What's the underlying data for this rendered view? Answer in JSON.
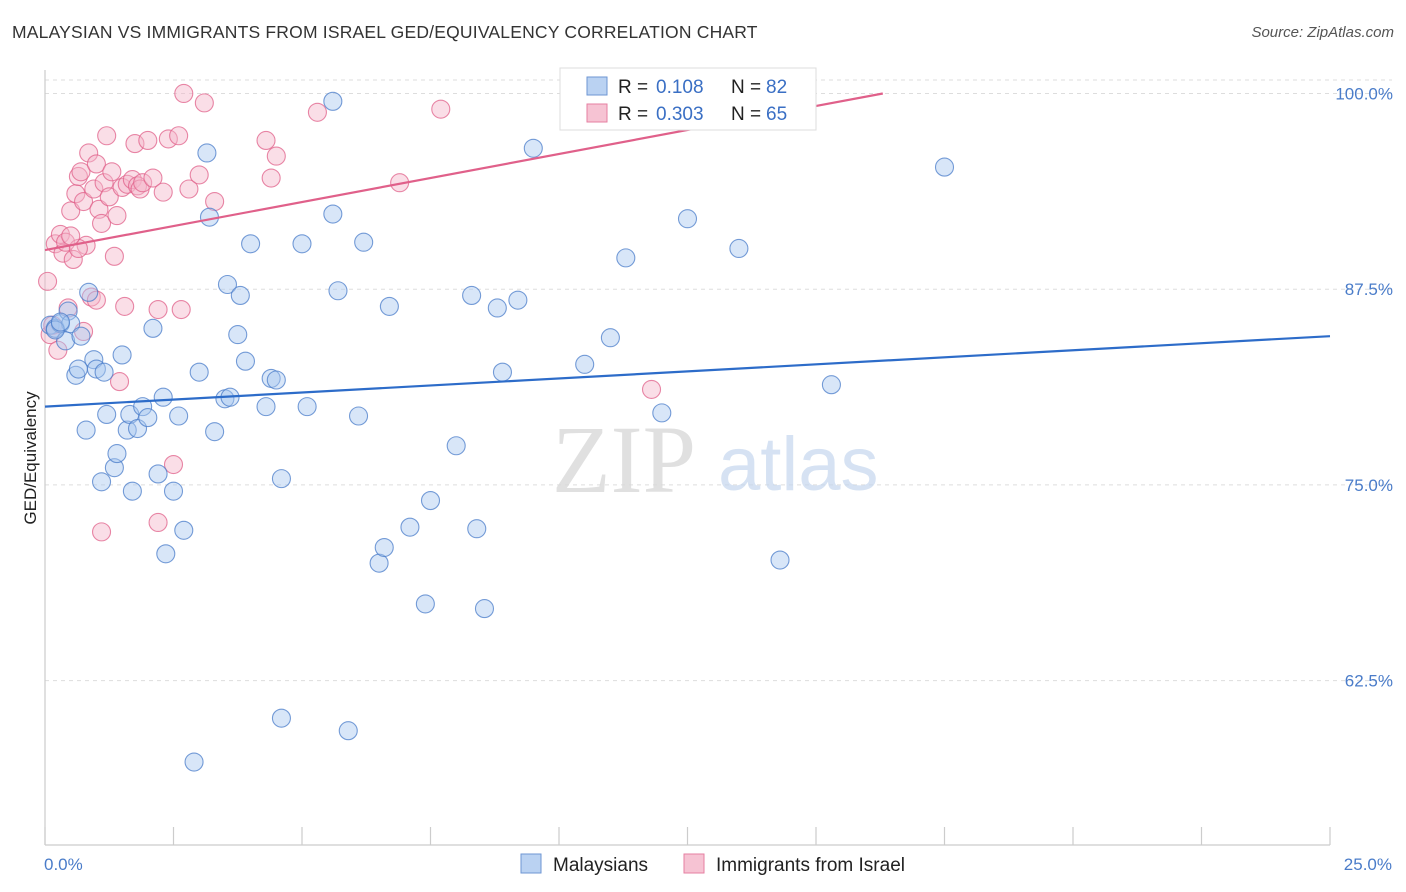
{
  "header": {
    "title": "MALAYSIAN VS IMMIGRANTS FROM ISRAEL GED/EQUIVALENCY CORRELATION CHART",
    "source": "Source: ZipAtlas.com"
  },
  "colors": {
    "blue": "#4a7cc9",
    "blue_fill": "#a9c8f0",
    "blue_line": "#2d6cc9",
    "pink": "#e0608a",
    "pink_fill": "#f5b5c9",
    "grid": "#dddddd"
  },
  "watermark": {
    "zip": "ZIP",
    "atlas": "atlas"
  },
  "chart_data": {
    "type": "scatter",
    "title": "MALAYSIAN VS IMMIGRANTS FROM ISRAEL GED/EQUIVALENCY CORRELATION CHART",
    "xlabel": "",
    "ylabel": "GED/Equivalency",
    "xlim": [
      0,
      25
    ],
    "ylim": [
      52,
      101.5
    ],
    "x_tick_labels": [
      "0.0%",
      "25.0%"
    ],
    "y_ticks": [
      62.5,
      75.0,
      87.5,
      100.0
    ],
    "y_tick_labels": [
      "62.5%",
      "75.0%",
      "87.5%",
      "100.0%"
    ],
    "grid": true,
    "legend": {
      "position": "top-center",
      "entries": [
        {
          "r_label": "R = ",
          "r_value": "0.108",
          "n_label": "N = ",
          "n_value": "82"
        },
        {
          "r_label": "R = ",
          "r_value": "0.303",
          "n_label": "N = ",
          "n_value": "65"
        }
      ]
    },
    "series": [
      {
        "name": "Malaysians",
        "trend": {
          "x": [
            0,
            25
          ],
          "y": [
            80.0,
            84.5
          ]
        },
        "points": [
          [
            0.1,
            85.2
          ],
          [
            0.2,
            85.0
          ],
          [
            0.3,
            85.3
          ],
          [
            0.4,
            84.2
          ],
          [
            0.45,
            86.1
          ],
          [
            0.5,
            85.3
          ],
          [
            0.6,
            82.0
          ],
          [
            0.65,
            82.4
          ],
          [
            0.7,
            84.5
          ],
          [
            0.8,
            78.5
          ],
          [
            0.85,
            87.3
          ],
          [
            0.95,
            83.0
          ],
          [
            1.0,
            82.4
          ],
          [
            1.1,
            75.2
          ],
          [
            1.15,
            82.2
          ],
          [
            1.2,
            79.5
          ],
          [
            1.35,
            76.1
          ],
          [
            1.4,
            77.0
          ],
          [
            1.5,
            83.3
          ],
          [
            1.6,
            78.5
          ],
          [
            1.65,
            79.5
          ],
          [
            1.7,
            74.6
          ],
          [
            1.8,
            78.6
          ],
          [
            1.9,
            80.0
          ],
          [
            2.0,
            79.3
          ],
          [
            2.1,
            85.0
          ],
          [
            2.2,
            75.7
          ],
          [
            2.3,
            80.6
          ],
          [
            2.35,
            70.6
          ],
          [
            2.5,
            74.6
          ],
          [
            2.6,
            79.4
          ],
          [
            2.7,
            72.1
          ],
          [
            2.9,
            57.3
          ],
          [
            3.0,
            82.2
          ],
          [
            3.15,
            96.2
          ],
          [
            3.2,
            92.1
          ],
          [
            3.3,
            78.4
          ],
          [
            3.5,
            80.5
          ],
          [
            3.55,
            87.8
          ],
          [
            3.6,
            80.6
          ],
          [
            3.75,
            84.6
          ],
          [
            3.8,
            87.1
          ],
          [
            3.9,
            82.9
          ],
          [
            4.0,
            90.4
          ],
          [
            4.3,
            80.0
          ],
          [
            4.4,
            81.8
          ],
          [
            4.5,
            81.7
          ],
          [
            4.6,
            75.4
          ],
          [
            5.0,
            90.4
          ],
          [
            5.1,
            80.0
          ],
          [
            5.6,
            92.3
          ],
          [
            5.7,
            87.4
          ],
          [
            5.9,
            59.3
          ],
          [
            6.1,
            79.4
          ],
          [
            6.2,
            90.5
          ],
          [
            6.5,
            70.0
          ],
          [
            6.6,
            71.0
          ],
          [
            6.7,
            86.4
          ],
          [
            7.1,
            72.3
          ],
          [
            7.4,
            67.4
          ],
          [
            7.5,
            74.0
          ],
          [
            8.0,
            77.5
          ],
          [
            8.3,
            87.1
          ],
          [
            8.4,
            72.2
          ],
          [
            8.55,
            67.1
          ],
          [
            8.8,
            86.3
          ],
          [
            8.9,
            82.2
          ],
          [
            9.2,
            86.8
          ],
          [
            9.5,
            96.5
          ],
          [
            10.5,
            82.7
          ],
          [
            11.0,
            84.4
          ],
          [
            11.3,
            89.5
          ],
          [
            12.0,
            79.6
          ],
          [
            12.5,
            92.0
          ],
          [
            13.5,
            90.1
          ],
          [
            14.3,
            70.2
          ],
          [
            15.3,
            81.4
          ],
          [
            17.5,
            95.3
          ],
          [
            0.2,
            84.9
          ],
          [
            0.3,
            85.4
          ],
          [
            5.6,
            99.5
          ],
          [
            4.6,
            60.1
          ]
        ]
      },
      {
        "name": "Immigrants from Israel",
        "trend": {
          "x": [
            0,
            16.3
          ],
          "y": [
            90.0,
            100.0
          ]
        },
        "points": [
          [
            0.05,
            88.0
          ],
          [
            0.1,
            84.6
          ],
          [
            0.15,
            85.2
          ],
          [
            0.2,
            90.4
          ],
          [
            0.25,
            83.6
          ],
          [
            0.3,
            91.0
          ],
          [
            0.35,
            89.8
          ],
          [
            0.4,
            90.5
          ],
          [
            0.45,
            86.3
          ],
          [
            0.5,
            92.5
          ],
          [
            0.55,
            89.4
          ],
          [
            0.6,
            93.6
          ],
          [
            0.65,
            94.7
          ],
          [
            0.7,
            95.0
          ],
          [
            0.75,
            93.1
          ],
          [
            0.8,
            90.3
          ],
          [
            0.85,
            96.2
          ],
          [
            0.9,
            87.0
          ],
          [
            0.95,
            93.9
          ],
          [
            1.0,
            95.5
          ],
          [
            1.05,
            92.6
          ],
          [
            1.1,
            91.7
          ],
          [
            1.15,
            94.3
          ],
          [
            1.2,
            97.3
          ],
          [
            1.25,
            93.4
          ],
          [
            1.3,
            95.0
          ],
          [
            1.35,
            89.6
          ],
          [
            1.4,
            92.2
          ],
          [
            1.45,
            81.6
          ],
          [
            1.5,
            94.0
          ],
          [
            1.55,
            86.4
          ],
          [
            1.6,
            94.2
          ],
          [
            1.7,
            94.5
          ],
          [
            1.75,
            96.8
          ],
          [
            1.8,
            94.1
          ],
          [
            1.85,
            93.9
          ],
          [
            1.9,
            94.3
          ],
          [
            2.0,
            97.0
          ],
          [
            2.1,
            94.6
          ],
          [
            2.2,
            72.6
          ],
          [
            2.3,
            93.7
          ],
          [
            2.4,
            97.1
          ],
          [
            2.5,
            76.3
          ],
          [
            2.6,
            97.3
          ],
          [
            2.65,
            86.2
          ],
          [
            2.7,
            100.0
          ],
          [
            2.8,
            93.9
          ],
          [
            3.0,
            94.8
          ],
          [
            3.1,
            99.4
          ],
          [
            3.3,
            93.1
          ],
          [
            4.3,
            97.0
          ],
          [
            4.4,
            94.6
          ],
          [
            4.5,
            96.0
          ],
          [
            5.3,
            98.8
          ],
          [
            6.9,
            94.3
          ],
          [
            7.7,
            99.0
          ],
          [
            10.5,
            100.0
          ],
          [
            11.8,
            81.1
          ],
          [
            13.7,
            99.7
          ],
          [
            1.1,
            72.0
          ],
          [
            0.65,
            90.1
          ],
          [
            0.5,
            90.9
          ],
          [
            1.0,
            86.8
          ],
          [
            2.2,
            86.2
          ],
          [
            0.75,
            84.8
          ]
        ]
      }
    ]
  }
}
